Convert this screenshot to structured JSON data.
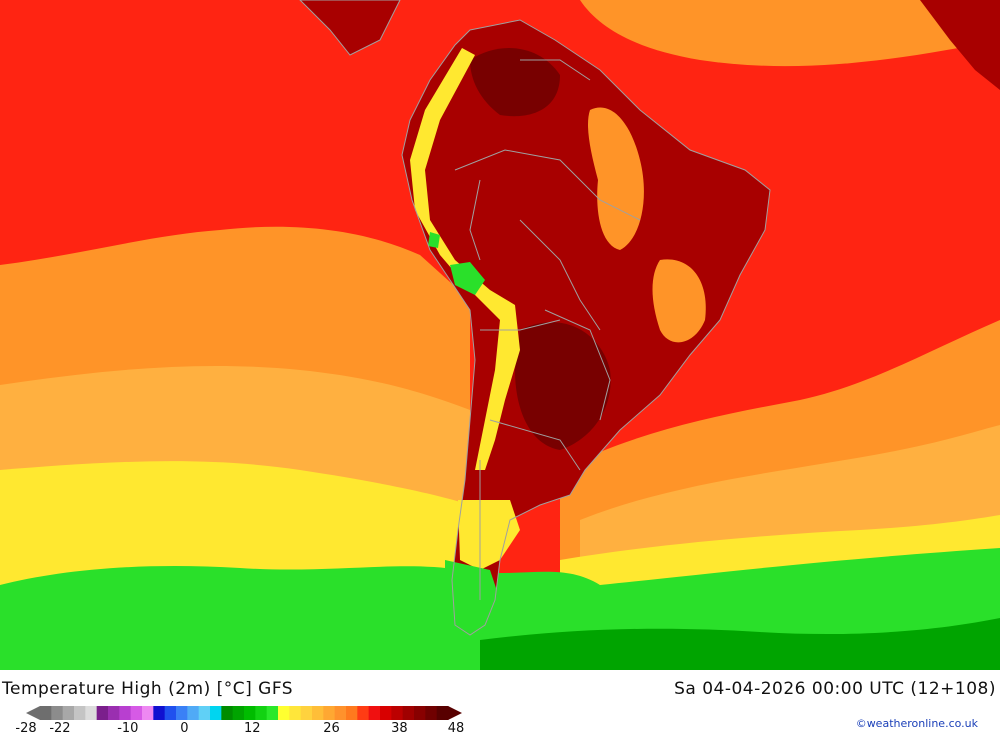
{
  "title": "Temperature High (2m) [°C] GFS",
  "datetime": "Sa 04-04-2026 00:00 UTC (12+108)",
  "credit": "©weatheronline.co.uk",
  "legend": {
    "tick_labels": [
      "-28",
      "-22",
      "-10",
      "0",
      "12",
      "26",
      "38",
      "48"
    ],
    "tick_values": [
      -28,
      -22,
      -10,
      0,
      12,
      26,
      38,
      48
    ],
    "min": -28,
    "max": 48,
    "colors": [
      "#6e6e6e",
      "#8c8c8c",
      "#a8a8a8",
      "#c4c4c4",
      "#dcdcdc",
      "#7b1f8c",
      "#9a2fb0",
      "#b83fd0",
      "#d65ae6",
      "#ee88f2",
      "#1010d0",
      "#2050ee",
      "#3a80f6",
      "#50aaf6",
      "#60d0f6",
      "#00d5f0",
      "#008c00",
      "#00a400",
      "#00bc00",
      "#12d212",
      "#2ae82a",
      "#ffff30",
      "#ffe63a",
      "#ffd23e",
      "#ffbe38",
      "#ffa832",
      "#ff922c",
      "#ff7a1e",
      "#ff3c14",
      "#f01010",
      "#d80000",
      "#bc0000",
      "#a00000",
      "#880000",
      "#700000",
      "#580000"
    ]
  },
  "map": {
    "region": "South America",
    "palette": {
      "ocean_warm": "#ff2412",
      "land_hot": "#a80000",
      "land_very_hot": "#780000",
      "orange": "#ff9428",
      "light_orange": "#ffb040",
      "yellow": "#ffe830",
      "green": "#2ae02a",
      "dark_green": "#00a400",
      "coast": "#a0a0a0"
    }
  }
}
